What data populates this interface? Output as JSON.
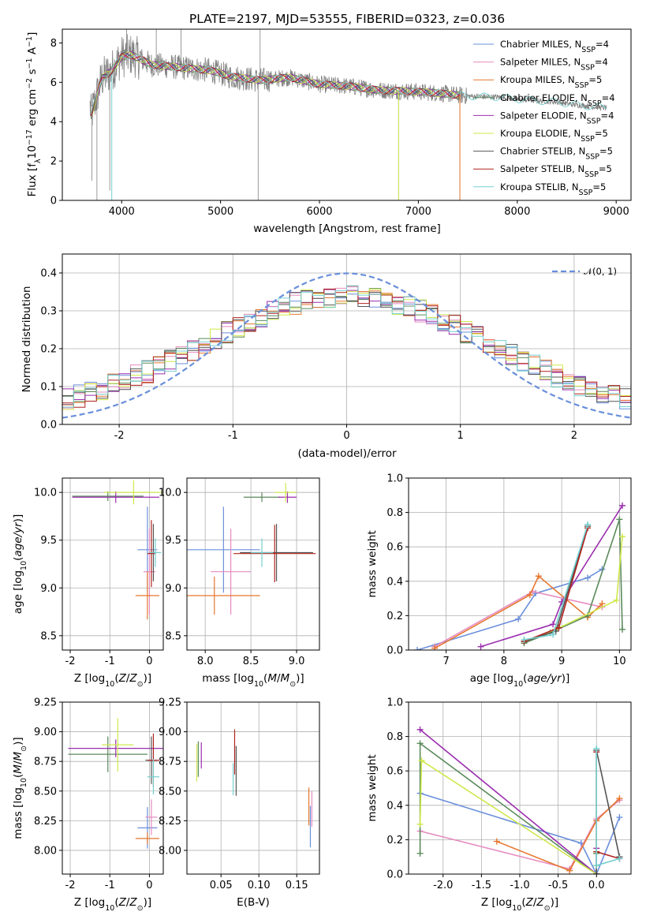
{
  "colors": {
    "Chabrier MILES": "#6a8fdb",
    "Salpeter MILES": "#e68bc0",
    "Kroupa MILES": "#e6772e",
    "Chabrier ELODIE": "#5b8a5b",
    "Salpeter ELODIE": "#9b2fae",
    "Kroupa ELODIE": "#cfe84b",
    "Chabrier STELIB": "#555555",
    "Salpeter STELIB": "#b0231e",
    "Kroupa STELIB": "#74d0cf"
  },
  "chart_data": [
    {
      "id": "spectrum",
      "type": "line",
      "title": "PLATE=2197, MJD=53555, FIBERID=0323, z=0.036",
      "xlabel": "wavelength [Angstrom, rest frame]",
      "ylabel": "Flux [f_λ 10^-17 erg cm^-2 s^-1 A^-1]",
      "xlim": [
        3400,
        9150
      ],
      "ylim": [
        0,
        8.7
      ],
      "xticks": [
        4000,
        5000,
        6000,
        7000,
        8000,
        9000
      ],
      "yticks": [
        0,
        2,
        4,
        6,
        8
      ],
      "data_color": "#808080",
      "data_range": [
        3680,
        8900
      ],
      "continuum": [
        [
          3690,
          4.3
        ],
        [
          3800,
          6.2
        ],
        [
          3900,
          6.6
        ],
        [
          4000,
          7.3
        ],
        [
          4100,
          7.4
        ],
        [
          4300,
          6.9
        ],
        [
          4500,
          6.8
        ],
        [
          4700,
          6.7
        ],
        [
          4900,
          6.6
        ],
        [
          5100,
          6.3
        ],
        [
          5400,
          6.1
        ],
        [
          5700,
          6.25
        ],
        [
          6000,
          5.9
        ],
        [
          6300,
          5.8
        ],
        [
          6600,
          5.6
        ],
        [
          6900,
          5.55
        ],
        [
          7200,
          5.45
        ],
        [
          7500,
          5.3
        ],
        [
          7800,
          5.25
        ],
        [
          8100,
          5.1
        ],
        [
          8400,
          5.0
        ],
        [
          8600,
          4.85
        ],
        [
          8900,
          4.7
        ]
      ],
      "legend": [
        {
          "name": "Chabrier MILES",
          "n_ssp": "4"
        },
        {
          "name": "Salpeter MILES",
          "n_ssp": "4"
        },
        {
          "name": "Kroupa MILES",
          "n_ssp": "5"
        },
        {
          "name": "Chabrier ELODIE",
          "n_ssp": "4"
        },
        {
          "name": "Salpeter ELODIE",
          "n_ssp": "4"
        },
        {
          "name": "Kroupa ELODIE",
          "n_ssp": "5"
        },
        {
          "name": "Chabrier STELIB",
          "n_ssp": "5"
        },
        {
          "name": "Salpeter STELIB",
          "n_ssp": "5"
        },
        {
          "name": "Kroupa STELIB",
          "n_ssp": "5"
        }
      ],
      "legend_position": "top-right"
    },
    {
      "id": "residuals",
      "type": "line",
      "xlabel": "(data-model)/error",
      "ylabel": "Normed distribution",
      "xlim": [
        -2.5,
        2.5
      ],
      "ylim": [
        0,
        0.45
      ],
      "xticks": [
        -2,
        -1,
        0,
        1,
        2
      ],
      "yticks": [
        0.0,
        0.1,
        0.2,
        0.3,
        0.4
      ],
      "grid": true,
      "bin_width": 0.1,
      "legend": "𝒩(0, 1)",
      "legend_position": "top-right"
    },
    {
      "id": "age-vs-Z",
      "type": "scatter",
      "xlabel": "Z [log10(Z/Z⊙)]",
      "ylabel": "age [log10(age/yr)]",
      "xlim": [
        -2.2,
        0.35
      ],
      "ylim": [
        8.35,
        10.15
      ],
      "xticks": [
        -2,
        -1,
        0
      ],
      "yticks": [
        8.5,
        9.0,
        9.5,
        10.0
      ],
      "grid": true,
      "points": [
        {
          "model": "Chabrier MILES",
          "x": -0.05,
          "y": 9.4,
          "xerr": 0.25,
          "yerr": 0.9
        },
        {
          "model": "Salpeter MILES",
          "x": 0.0,
          "y": 9.17,
          "xerr": 0.15,
          "yerr": 0.9
        },
        {
          "model": "Kroupa MILES",
          "x": -0.05,
          "y": 8.92,
          "xerr": 0.3,
          "yerr": 0.5
        },
        {
          "model": "Chabrier ELODIE",
          "x": -1.05,
          "y": 9.96,
          "xerr": 0.9,
          "yerr": 0.1
        },
        {
          "model": "Salpeter ELODIE",
          "x": -0.85,
          "y": 9.95,
          "xerr": 1.1,
          "yerr": 0.12
        },
        {
          "model": "Kroupa ELODIE",
          "x": -0.4,
          "y": 10.0,
          "xerr": 0.75,
          "yerr": 0.25
        },
        {
          "model": "Chabrier STELIB",
          "x": 0.1,
          "y": 9.37,
          "xerr": 0.1,
          "yerr": 0.6
        },
        {
          "model": "Salpeter STELIB",
          "x": 0.05,
          "y": 9.36,
          "xerr": 0.1,
          "yerr": 0.7
        },
        {
          "model": "Kroupa STELIB",
          "x": 0.15,
          "y": 9.37,
          "xerr": 0.15,
          "yerr": 0.3
        }
      ]
    },
    {
      "id": "age-vs-mass",
      "type": "scatter",
      "xlabel": "mass [log10(M/M⊙)]",
      "xlim": [
        7.8,
        9.25
      ],
      "ylim": [
        8.35,
        10.15
      ],
      "xticks": [
        8.0,
        8.5,
        9.0
      ],
      "yticks": [
        8.5,
        9.0,
        9.5,
        10.0
      ],
      "grid": true,
      "points": [
        {
          "model": "Chabrier MILES",
          "x": 8.2,
          "y": 9.4,
          "xerr": 0.4,
          "yerr": 0.9
        },
        {
          "model": "Salpeter MILES",
          "x": 8.28,
          "y": 9.17,
          "xerr": 0.22,
          "yerr": 0.9
        },
        {
          "model": "Kroupa MILES",
          "x": 8.1,
          "y": 8.92,
          "xerr": 0.5,
          "yerr": 0.4
        },
        {
          "model": "Chabrier ELODIE",
          "x": 8.62,
          "y": 9.95,
          "xerr": 0.2,
          "yerr": 0.1
        },
        {
          "model": "Salpeter ELODIE",
          "x": 8.9,
          "y": 9.95,
          "xerr": 0.1,
          "yerr": 0.12
        },
        {
          "model": "Kroupa ELODIE",
          "x": 8.88,
          "y": 10.0,
          "xerr": 0.12,
          "yerr": 0.2
        },
        {
          "model": "Chabrier STELIB",
          "x": 8.78,
          "y": 9.37,
          "xerr": 0.4,
          "yerr": 0.6
        },
        {
          "model": "Salpeter STELIB",
          "x": 8.76,
          "y": 9.36,
          "xerr": 0.45,
          "yerr": 0.6
        },
        {
          "model": "Kroupa STELIB",
          "x": 8.62,
          "y": 9.37,
          "xerr": 0.12,
          "yerr": 0.3
        }
      ]
    },
    {
      "id": "weight-vs-age",
      "type": "line",
      "xlabel": "age [log10(age/yr)]",
      "ylabel": "mass weight",
      "xlim": [
        6.35,
        10.2
      ],
      "ylim": [
        0,
        1.0
      ],
      "xticks": [
        7,
        8,
        9,
        10
      ],
      "yticks": [
        0.0,
        0.2,
        0.4,
        0.6,
        0.8,
        1.0
      ],
      "grid": true,
      "series": [
        {
          "model": "Chabrier MILES",
          "x": [
            6.5,
            8.25,
            8.55,
            9.45,
            9.7
          ],
          "y": [
            0.0,
            0.18,
            0.33,
            0.42,
            0.47
          ]
        },
        {
          "model": "Salpeter MILES",
          "x": [
            6.8,
            8.5,
            9.7
          ],
          "y": [
            0.02,
            0.34,
            0.25
          ]
        },
        {
          "model": "Kroupa MILES",
          "x": [
            6.8,
            8.45,
            8.6,
            9.45,
            9.7
          ],
          "y": [
            0.01,
            0.32,
            0.43,
            0.19,
            0.27
          ]
        },
        {
          "model": "Chabrier ELODIE",
          "x": [
            8.35,
            8.8,
            9.45,
            10.0,
            10.05
          ],
          "y": [
            0.04,
            0.1,
            0.2,
            0.76,
            0.12
          ]
        },
        {
          "model": "Salpeter ELODIE",
          "x": [
            7.6,
            8.85,
            9.0,
            10.05
          ],
          "y": [
            0.02,
            0.15,
            0.28,
            0.84
          ]
        },
        {
          "model": "Kroupa ELODIE",
          "x": [
            8.35,
            8.9,
            9.95,
            10.05
          ],
          "y": [
            0.05,
            0.12,
            0.29,
            0.66
          ]
        },
        {
          "model": "Chabrier STELIB",
          "x": [
            8.35,
            8.9,
            9.45
          ],
          "y": [
            0.05,
            0.11,
            0.72
          ]
        },
        {
          "model": "Salpeter STELIB",
          "x": [
            8.35,
            8.95,
            9.45
          ],
          "y": [
            0.05,
            0.13,
            0.71
          ]
        },
        {
          "model": "Kroupa STELIB",
          "x": [
            8.35,
            8.85,
            9.45
          ],
          "y": [
            0.06,
            0.09,
            0.73
          ]
        }
      ]
    },
    {
      "id": "mass-vs-Z",
      "type": "scatter",
      "xlabel": "Z [log10(Z/Z⊙)]",
      "ylabel": "mass [log10(M/M⊙)]",
      "xlim": [
        -2.2,
        0.35
      ],
      "ylim": [
        7.8,
        9.25
      ],
      "xticks": [
        -2,
        -1,
        0
      ],
      "yticks": [
        8.0,
        8.25,
        8.5,
        8.75,
        9.0,
        9.25
      ],
      "grid": true,
      "points": [
        {
          "model": "Chabrier MILES",
          "x": -0.05,
          "y": 8.19,
          "xerr": 0.25,
          "yerr": 0.35
        },
        {
          "model": "Salpeter MILES",
          "x": 0.05,
          "y": 8.28,
          "xerr": 0.15,
          "yerr": 0.3
        },
        {
          "model": "Kroupa MILES",
          "x": -0.05,
          "y": 8.1,
          "xerr": 0.3,
          "yerr": 0.1
        },
        {
          "model": "Chabrier ELODIE",
          "x": -1.05,
          "y": 8.81,
          "xerr": 1.0,
          "yerr": 0.3
        },
        {
          "model": "Salpeter ELODIE",
          "x": -0.85,
          "y": 8.86,
          "xerr": 1.2,
          "yerr": 0.15
        },
        {
          "model": "Kroupa ELODIE",
          "x": -0.8,
          "y": 8.89,
          "xerr": 0.4,
          "yerr": 0.45
        },
        {
          "model": "Chabrier STELIB",
          "x": 0.05,
          "y": 8.76,
          "xerr": 0.15,
          "yerr": 0.4
        },
        {
          "model": "Salpeter STELIB",
          "x": 0.1,
          "y": 8.76,
          "xerr": 0.15,
          "yerr": 0.45
        },
        {
          "model": "Kroupa STELIB",
          "x": 0.1,
          "y": 8.62,
          "xerr": 0.15,
          "yerr": 0.3
        }
      ]
    },
    {
      "id": "mass-vs-ebv",
      "type": "scatter",
      "xlabel": "E(B-V)",
      "xlim": [
        0.005,
        0.18
      ],
      "ylim": [
        7.8,
        9.25
      ],
      "xticks": [
        0.05,
        0.1,
        0.15
      ],
      "yticks": [
        8.0,
        8.25,
        8.5,
        8.75,
        9.0,
        9.25
      ],
      "grid": true,
      "points": [
        {
          "model": "Chabrier MILES",
          "x": 0.168,
          "y": 8.2,
          "yerr": 0.35
        },
        {
          "model": "Salpeter MILES",
          "x": 0.17,
          "y": 8.35,
          "yerr": 0.3
        },
        {
          "model": "Kroupa MILES",
          "x": 0.166,
          "y": 8.37,
          "yerr": 0.32
        },
        {
          "model": "Chabrier ELODIE",
          "x": 0.02,
          "y": 8.77,
          "yerr": 0.3
        },
        {
          "model": "Salpeter ELODIE",
          "x": 0.024,
          "y": 8.8,
          "yerr": 0.22
        },
        {
          "model": "Kroupa ELODIE",
          "x": 0.018,
          "y": 8.74,
          "yerr": 0.32
        },
        {
          "model": "Chabrier STELIB",
          "x": 0.07,
          "y": 8.67,
          "yerr": 0.42
        },
        {
          "model": "Salpeter STELIB",
          "x": 0.068,
          "y": 8.83,
          "yerr": 0.38
        },
        {
          "model": "Kroupa STELIB",
          "x": 0.066,
          "y": 8.6,
          "yerr": 0.27
        }
      ]
    },
    {
      "id": "weight-vs-Z",
      "type": "line",
      "xlabel": "Z [log10(Z/Z⊙)]",
      "ylabel": "mass weight",
      "xlim": [
        -2.45,
        0.45
      ],
      "ylim": [
        0,
        1.0
      ],
      "xticks": [
        -2.0,
        -1.5,
        -1.0,
        -0.5,
        0.0
      ],
      "yticks": [
        0.0,
        0.2,
        0.4,
        0.6,
        0.8,
        1.0
      ],
      "grid": true,
      "series": [
        {
          "model": "Chabrier MILES",
          "x": [
            -2.3,
            -0.2,
            0.0,
            0.3
          ],
          "y": [
            0.47,
            0.18,
            0.0,
            0.33
          ]
        },
        {
          "model": "Salpeter MILES",
          "x": [
            -2.3,
            -0.35,
            0.0,
            0.3
          ],
          "y": [
            0.25,
            0.03,
            0.32,
            0.43
          ]
        },
        {
          "model": "Kroupa MILES",
          "x": [
            -1.3,
            -0.35,
            0.0,
            0.3
          ],
          "y": [
            0.19,
            0.02,
            0.31,
            0.44
          ]
        },
        {
          "model": "Chabrier ELODIE",
          "x": [
            -2.3,
            -2.3,
            0.0,
            0.0
          ],
          "y": [
            0.12,
            0.76,
            0.0,
            0.12
          ]
        },
        {
          "model": "Salpeter ELODIE",
          "x": [
            -2.3,
            0.0,
            0.0
          ],
          "y": [
            0.84,
            0.0,
            0.15
          ]
        },
        {
          "model": "Kroupa ELODIE",
          "x": [
            -2.3,
            -2.28,
            0.0,
            0.0
          ],
          "y": [
            0.29,
            0.66,
            0.0,
            0.05
          ]
        },
        {
          "model": "Chabrier STELIB",
          "x": [
            0.0,
            0.0,
            0.3
          ],
          "y": [
            0.0,
            0.72,
            0.1
          ]
        },
        {
          "model": "Salpeter STELIB",
          "x": [
            0.0,
            0.0,
            0.3
          ],
          "y": [
            0.71,
            0.13,
            0.09
          ]
        },
        {
          "model": "Kroupa STELIB",
          "x": [
            0.0,
            0.0,
            0.3
          ],
          "y": [
            0.73,
            0.05,
            0.09
          ]
        }
      ]
    }
  ]
}
